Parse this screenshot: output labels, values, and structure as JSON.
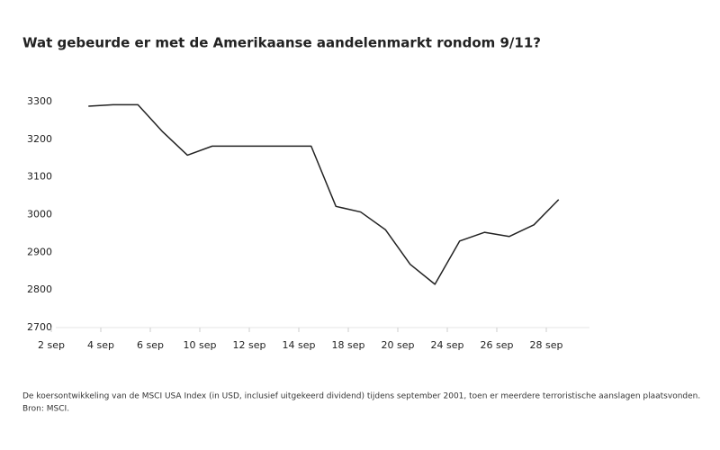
{
  "chart_data": {
    "type": "line",
    "title": "Wat gebeurde er met de Amerikaanse aandelenmarkt rondom 9/11?",
    "caption": "De koersontwikkeling van de MSCI USA Index (in USD, inclusief uitgekeerd dividend) tijdens september 2001, toen er meerdere terroristische aanslagen plaatsvonden.",
    "source": "Bron: MSCI.",
    "categories": [
      "2 sep",
      null,
      "4 sep",
      null,
      "6 sep",
      null,
      "10 sep",
      null,
      "12 sep",
      null,
      "14 sep",
      null,
      "18 sep",
      null,
      "20 sep",
      null,
      "24 sep",
      null,
      "26 sep",
      null,
      "28 sep"
    ],
    "series": [
      {
        "color": "#222222",
        "values": [
          null,
          3288,
          3292,
          3292,
          3220,
          3158,
          3182,
          3182,
          3182,
          3182,
          3182,
          3022,
          3007,
          2960,
          2868,
          2815,
          2930,
          2953,
          2942,
          2973,
          3040
        ]
      }
    ],
    "ylim": [
      2700,
      3300
    ],
    "yticks": [
      2700,
      2800,
      2900,
      3000,
      3100,
      3200,
      3300
    ]
  }
}
